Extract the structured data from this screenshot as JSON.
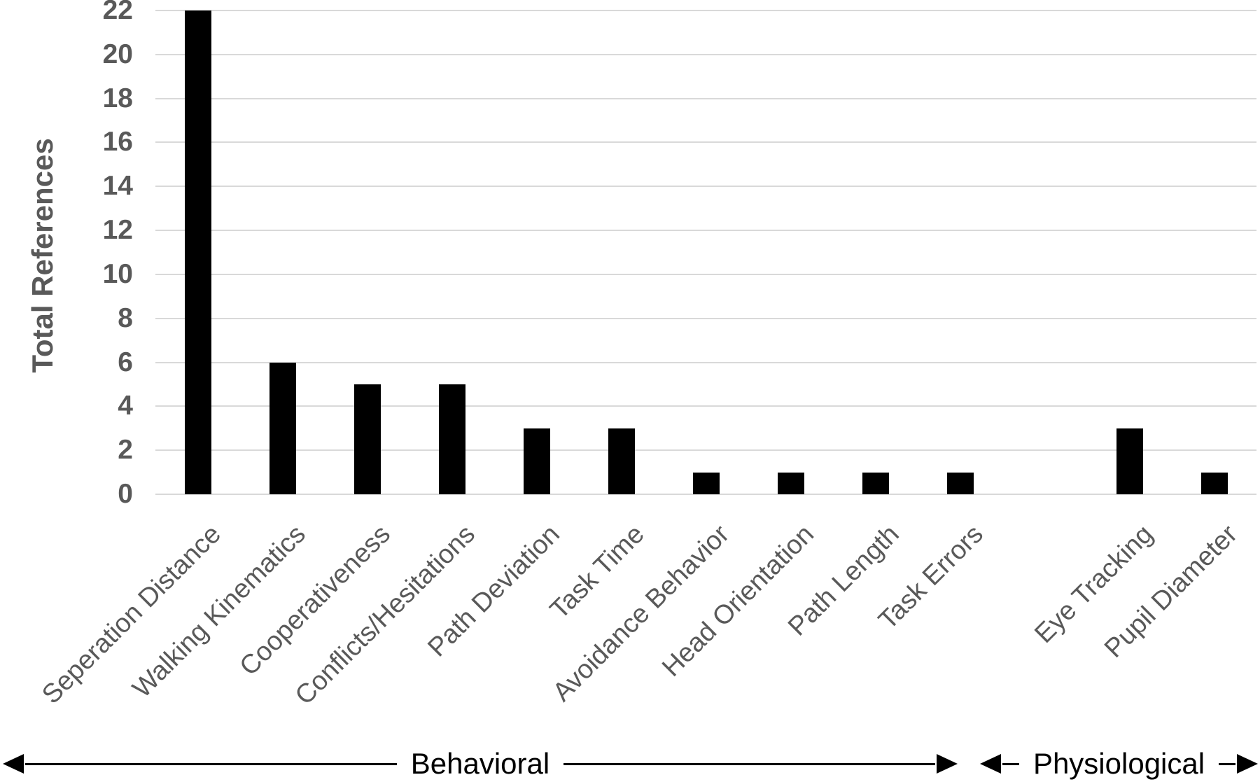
{
  "chart_data": {
    "type": "bar",
    "title": "",
    "xlabel": "",
    "ylabel": "Total References",
    "ylim": [
      0,
      22
    ],
    "yticks": [
      0,
      2,
      4,
      6,
      8,
      10,
      12,
      14,
      16,
      18,
      20,
      22
    ],
    "grid": true,
    "legend": false,
    "bar_color": "#000000",
    "gridline_color": "#d9d9d9",
    "tick_label_color": "#595959",
    "axis_title_color": "#595959",
    "group_label_color": "#000000",
    "categories": [
      "Seperation Distance",
      "Walking Kinematics",
      "Cooperativeness",
      "Conflicts/Hesitations",
      "Path Deviation",
      "Task Time",
      "Avoidance Behavior",
      "Head Orientation",
      "Path Length",
      "Task Errors",
      "Eye Tracking",
      "Pupil Diameter"
    ],
    "values": [
      22,
      6,
      5,
      5,
      3,
      3,
      1,
      1,
      1,
      1,
      3,
      1
    ],
    "groups": [
      {
        "label": "Behavioral",
        "from": 0,
        "to": 9
      },
      {
        "label": "Physiological",
        "from": 10,
        "to": 11
      }
    ],
    "gap_slot_after_category_index": 9
  }
}
